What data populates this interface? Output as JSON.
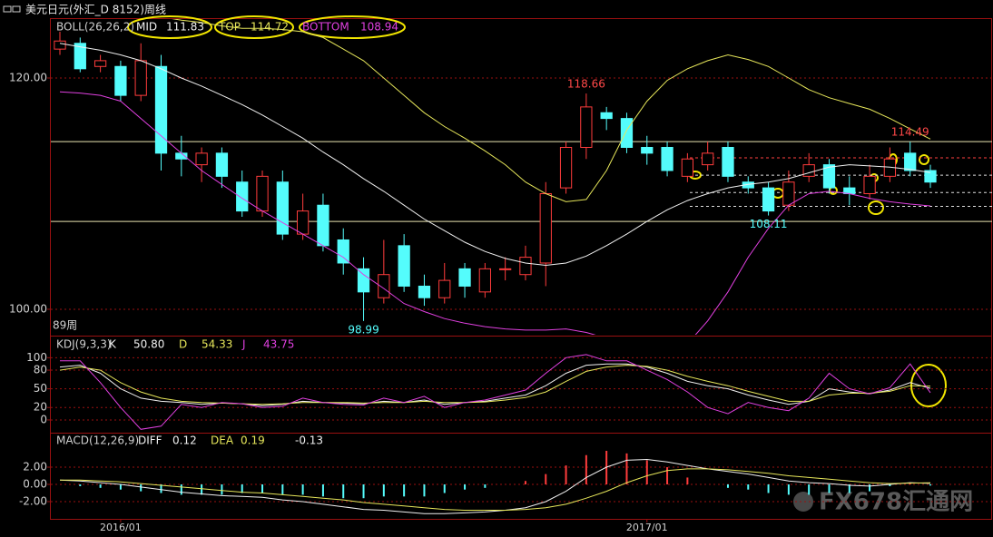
{
  "header": {
    "title": "美元日元(外汇_D 8152)周线"
  },
  "watermark": "FX678汇通网",
  "chart_data": [
    {
      "type": "candlestick",
      "legend_title": "BOLL(26,26,2)",
      "period_label": "89周",
      "categories": [
        null,
        null,
        null,
        "2016/01",
        null,
        null,
        null,
        null,
        null,
        null,
        null,
        null,
        null,
        null,
        null,
        null,
        null,
        null,
        null,
        null,
        null,
        null,
        null,
        null,
        null,
        null,
        null,
        null,
        null,
        "2017/01",
        null,
        null,
        null,
        null,
        null,
        null,
        null,
        null,
        null,
        null,
        null,
        null,
        null,
        null
      ],
      "open": [
        122.5,
        123,
        121,
        121,
        118.5,
        121,
        113.5,
        112.5,
        113.5,
        111,
        108.5,
        111,
        106.5,
        109,
        106,
        103.5,
        101,
        105.5,
        102,
        101,
        103.5,
        101.5,
        103.5,
        103,
        104,
        110.5,
        114,
        117,
        116.5,
        114,
        114,
        111.5,
        112.5,
        114,
        111,
        110.5,
        109,
        111.5,
        112.5,
        110.5,
        110,
        111.5,
        113.5,
        112
      ],
      "high": [
        124,
        123.5,
        122,
        121.5,
        123,
        122,
        115,
        114,
        114,
        112,
        112,
        112,
        110,
        110,
        107,
        104.5,
        106,
        106.5,
        103,
        104,
        104,
        104,
        104.5,
        105.5,
        111,
        114.5,
        118.66,
        117.5,
        117,
        115,
        114.5,
        113.5,
        114.5,
        114.5,
        111.5,
        111,
        112,
        113.5,
        113,
        111.5,
        112.5,
        114,
        114.49,
        112.5
      ],
      "low": [
        122,
        120.5,
        120.5,
        118,
        118,
        112,
        111.5,
        111,
        110.5,
        108,
        108,
        106,
        106,
        105,
        103,
        98.99,
        100.5,
        101.5,
        100.3,
        100.5,
        101,
        101,
        102.5,
        102.5,
        102,
        110,
        113,
        115.5,
        113.5,
        112.5,
        111.5,
        111,
        112,
        111,
        110,
        108.11,
        108.5,
        111,
        110,
        109,
        109.5,
        111,
        111.5,
        110.5
      ],
      "close": [
        123.2,
        120.8,
        121.5,
        118.5,
        121.5,
        113.5,
        113,
        113.5,
        111.5,
        108.5,
        111.5,
        106.5,
        108.5,
        105.5,
        104,
        101.5,
        103,
        102,
        101,
        102.5,
        102,
        103.5,
        103.5,
        104.5,
        110,
        114,
        117.5,
        116.5,
        114,
        113.5,
        112,
        113,
        113.5,
        111.5,
        110.5,
        108.5,
        111,
        112.5,
        110.5,
        110,
        111.5,
        113,
        112,
        111
      ],
      "up_color": "#ff3c3c",
      "down_color": "#54fcfc",
      "series": [
        {
          "name": "MID",
          "last_label": "111.83",
          "color": "#f0f0f0",
          "values": [
            123,
            122.7,
            122.4,
            122,
            121.5,
            120.8,
            120,
            119.3,
            118.5,
            117.7,
            116.8,
            115.8,
            114.8,
            113.6,
            112.5,
            111.3,
            110.2,
            109,
            107.8,
            106.8,
            105.8,
            105,
            104.4,
            104,
            103.8,
            104,
            104.6,
            105.5,
            106.5,
            107.6,
            108.6,
            109.4,
            110,
            110.5,
            110.8,
            111,
            111.3,
            111.8,
            112.3,
            112.5,
            112.4,
            112.3,
            112.1,
            111.83
          ]
        },
        {
          "name": "TOP",
          "last_label": "114.72",
          "color": "#e6e65a",
          "values": [
            126,
            126,
            126,
            125.8,
            125.5,
            125.3,
            125,
            124.8,
            124.5,
            124.3,
            124.3,
            124.2,
            124,
            123.5,
            122.5,
            121.5,
            120,
            118.5,
            117,
            115.8,
            114.8,
            113.7,
            112.5,
            111,
            110,
            109.3,
            109.5,
            112,
            115.5,
            118,
            119.8,
            120.8,
            121.5,
            122,
            121.6,
            121,
            120,
            119,
            118.3,
            117.8,
            117.3,
            116.5,
            115.6,
            114.72
          ]
        },
        {
          "name": "BOTTOM",
          "last_label": "108.94",
          "color": "#e040e0",
          "values": [
            118.8,
            118.7,
            118.5,
            118,
            116.5,
            115,
            113.5,
            112,
            110.8,
            109.6,
            108.5,
            107.5,
            106.5,
            105.5,
            104.5,
            103,
            101.8,
            100.5,
            99.8,
            99.2,
            98.8,
            98.5,
            98.3,
            98.2,
            98.2,
            98.3,
            98,
            97.5,
            97,
            96.8,
            96.5,
            97,
            99,
            101.5,
            104.5,
            107,
            109,
            110,
            110.2,
            110,
            109.6,
            109.3,
            109.1,
            108.94
          ]
        }
      ],
      "annotations": [
        {
          "label": "118.66",
          "value": 118.66,
          "index": 26,
          "color": "#ff4848",
          "place": "above"
        },
        {
          "label": "98.99",
          "value": 98.99,
          "index": 15,
          "color": "#54fcfc",
          "place": "below"
        },
        {
          "label": "108.11",
          "value": 108.11,
          "index": 35,
          "color": "#54fcfc",
          "place": "below"
        },
        {
          "label": "114.49",
          "value": 114.49,
          "index": 42,
          "color": "#ff4848",
          "place": "above"
        }
      ],
      "hlines": [
        {
          "value": 114.5,
          "color": "#e8e4b0",
          "dashed": false
        },
        {
          "value": 107.6,
          "color": "#e8e4b0",
          "dashed": false
        },
        {
          "value": 113.1,
          "color": "#ff4040",
          "dashed": true
        },
        {
          "value": 111.6,
          "color": "#dddddd",
          "dashed": true
        },
        {
          "value": 110.1,
          "color": "#dddddd",
          "dashed": true
        },
        {
          "value": 108.9,
          "color": "#dddddd",
          "dashed": true
        }
      ],
      "ylim": [
        97.8,
        125.1
      ],
      "yticks": [
        {
          "value": 120,
          "label": "120.00"
        },
        {
          "value": 100,
          "label": "100.00"
        }
      ],
      "grid": true
    },
    {
      "type": "line",
      "legend_title": "KDJ(9,3,3)",
      "series": [
        {
          "name": "K",
          "last_label": "50.80",
          "color": "#f0f0f0",
          "values": [
            85,
            88,
            75,
            50,
            35,
            30,
            28,
            25,
            27,
            26,
            23,
            25,
            30,
            28,
            27,
            26,
            30,
            28,
            32,
            25,
            28,
            30,
            35,
            40,
            55,
            75,
            88,
            90,
            90,
            85,
            75,
            62,
            55,
            50,
            40,
            32,
            25,
            30,
            50,
            45,
            42,
            48,
            60,
            50.8
          ]
        },
        {
          "name": "D",
          "last_label": "54.33",
          "color": "#e6e65a",
          "values": [
            80,
            85,
            80,
            60,
            45,
            35,
            30,
            28,
            27,
            26,
            25,
            26,
            28,
            28,
            28,
            27,
            28,
            28,
            30,
            28,
            28,
            29,
            32,
            36,
            45,
            62,
            78,
            85,
            88,
            86,
            80,
            70,
            62,
            55,
            46,
            38,
            30,
            30,
            40,
            43,
            43,
            46,
            55,
            54.33
          ]
        },
        {
          "name": "J",
          "last_label": "43.75",
          "color": "#e040e0",
          "values": [
            95,
            95,
            60,
            20,
            -15,
            -10,
            25,
            20,
            28,
            26,
            20,
            22,
            35,
            28,
            25,
            24,
            35,
            28,
            38,
            20,
            28,
            32,
            40,
            48,
            75,
            100,
            105,
            95,
            95,
            80,
            65,
            45,
            20,
            10,
            28,
            20,
            15,
            35,
            75,
            50,
            42,
            52,
            90,
            43.75
          ]
        }
      ],
      "ylim": [
        -19,
        134
      ],
      "yticks": [
        100,
        80,
        50,
        20,
        0
      ],
      "grid": true
    },
    {
      "type": "macd",
      "legend_title": "MACD(12,26,9)",
      "series": [
        {
          "name": "DIFF",
          "last_label": "0.12",
          "color": "#f0f0f0",
          "values": [
            0.5,
            0.4,
            0.2,
            0,
            -0.3,
            -0.6,
            -0.9,
            -1.1,
            -1.3,
            -1.4,
            -1.5,
            -1.8,
            -2,
            -2.3,
            -2.6,
            -2.9,
            -3,
            -3.2,
            -3.4,
            -3.4,
            -3.3,
            -3.2,
            -3,
            -2.7,
            -2,
            -0.8,
            0.8,
            2,
            2.8,
            2.9,
            2.6,
            2.2,
            1.8,
            1.5,
            1.2,
            0.8,
            0.4,
            0.2,
            0.1,
            -0.1,
            -0.2,
            0,
            0.2,
            0.12
          ]
        },
        {
          "name": "DEA",
          "last_label": "0.19",
          "color": "#e6e65a",
          "values": [
            0.5,
            0.5,
            0.4,
            0.3,
            0.1,
            -0.1,
            -0.3,
            -0.5,
            -0.7,
            -0.9,
            -1,
            -1.2,
            -1.4,
            -1.6,
            -1.8,
            -2.1,
            -2.3,
            -2.5,
            -2.7,
            -2.9,
            -3,
            -3,
            -3,
            -2.9,
            -2.7,
            -2.3,
            -1.6,
            -0.8,
            0.2,
            1,
            1.6,
            1.8,
            1.8,
            1.7,
            1.5,
            1.3,
            1,
            0.8,
            0.6,
            0.4,
            0.2,
            0.1,
            0.15,
            0.19
          ]
        }
      ],
      "bars": {
        "last_label": "-0.13",
        "up_color": "#ff3c3c",
        "down_color": "#54fcfc",
        "values": [
          0,
          -0.2,
          -0.4,
          -0.6,
          -0.8,
          -1,
          -1.2,
          -1.2,
          -1.2,
          -1,
          -1,
          -1.2,
          -1.2,
          -1.4,
          -1.6,
          -1.6,
          -1.4,
          -1.4,
          -1.4,
          -1,
          -0.6,
          -0.4,
          0,
          0.4,
          1.2,
          2.2,
          3.4,
          3.9,
          3.6,
          2.8,
          2,
          0.8,
          0,
          -0.4,
          -0.6,
          -1,
          -1.2,
          -1.2,
          -1,
          -1,
          -0.8,
          -0.2,
          0.1,
          -0.13
        ]
      },
      "ylim": [
        -4,
        5.9
      ],
      "yticks": [
        {
          "value": 2,
          "label": "2.00"
        },
        {
          "value": 0,
          "label": "0.00"
        },
        {
          "value": -2,
          "label": "-2.00"
        }
      ],
      "grid": true
    }
  ]
}
